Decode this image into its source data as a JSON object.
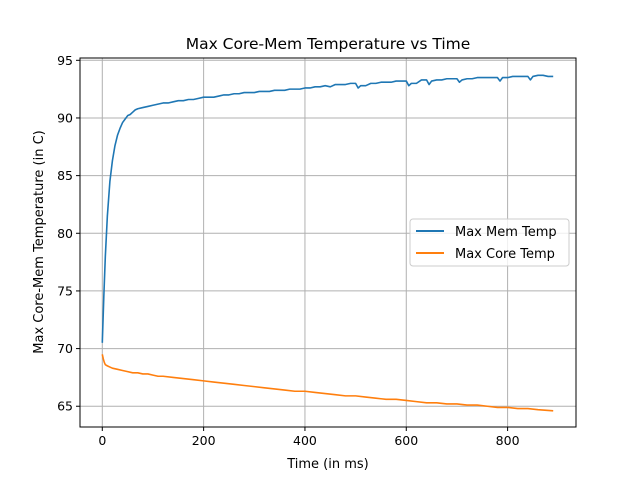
{
  "chart_data": {
    "type": "line",
    "title": "Max Core-Mem Temperature vs Time",
    "xlabel": "Time (in ms)",
    "ylabel": "Max Core-Mem Temperature (in C)",
    "xlim": [
      -44,
      935
    ],
    "ylim": [
      63.2,
      95.2
    ],
    "xticks": [
      0,
      200,
      400,
      600,
      800
    ],
    "yticks": [
      65,
      70,
      75,
      80,
      85,
      90,
      95
    ],
    "grid": true,
    "legend_position": "center-right",
    "series": [
      {
        "name": "Max Mem Temp",
        "color": "#1f77b4",
        "x": [
          0,
          3,
          6,
          10,
          15,
          20,
          25,
          30,
          35,
          40,
          45,
          50,
          55,
          60,
          65,
          70,
          80,
          90,
          100,
          110,
          120,
          130,
          140,
          150,
          160,
          170,
          180,
          190,
          200,
          210,
          220,
          230,
          240,
          250,
          260,
          270,
          280,
          290,
          300,
          310,
          320,
          330,
          340,
          350,
          360,
          370,
          380,
          390,
          400,
          410,
          420,
          430,
          440,
          450,
          460,
          470,
          480,
          490,
          500,
          505,
          510,
          520,
          530,
          540,
          550,
          560,
          570,
          580,
          590,
          600,
          605,
          610,
          620,
          630,
          640,
          645,
          650,
          660,
          670,
          680,
          690,
          700,
          705,
          710,
          720,
          730,
          740,
          750,
          760,
          770,
          780,
          785,
          790,
          800,
          810,
          820,
          830,
          840,
          845,
          850,
          860,
          870,
          880,
          890
        ],
        "y": [
          70.5,
          74.5,
          78.0,
          81.5,
          84.5,
          86.3,
          87.6,
          88.5,
          89.1,
          89.6,
          89.9,
          90.2,
          90.3,
          90.5,
          90.7,
          90.8,
          90.9,
          91.0,
          91.1,
          91.2,
          91.3,
          91.3,
          91.4,
          91.5,
          91.5,
          91.6,
          91.6,
          91.7,
          91.8,
          91.8,
          91.8,
          91.9,
          92.0,
          92.0,
          92.1,
          92.1,
          92.2,
          92.2,
          92.2,
          92.3,
          92.3,
          92.3,
          92.4,
          92.4,
          92.4,
          92.5,
          92.5,
          92.5,
          92.6,
          92.6,
          92.7,
          92.7,
          92.8,
          92.7,
          92.9,
          92.9,
          92.9,
          93.0,
          93.0,
          92.6,
          92.8,
          92.8,
          93.0,
          93.0,
          93.1,
          93.1,
          93.1,
          93.2,
          93.2,
          93.2,
          92.8,
          93.0,
          93.0,
          93.3,
          93.3,
          92.9,
          93.2,
          93.3,
          93.3,
          93.4,
          93.4,
          93.4,
          93.1,
          93.3,
          93.4,
          93.4,
          93.5,
          93.5,
          93.5,
          93.5,
          93.5,
          93.2,
          93.5,
          93.5,
          93.6,
          93.6,
          93.6,
          93.6,
          93.3,
          93.6,
          93.7,
          93.7,
          93.6,
          93.6
        ]
      },
      {
        "name": "Max Core Temp",
        "color": "#ff7f0e",
        "x": [
          0,
          2,
          4,
          6,
          10,
          15,
          20,
          30,
          40,
          50,
          60,
          70,
          80,
          90,
          100,
          110,
          120,
          140,
          160,
          180,
          200,
          220,
          240,
          260,
          280,
          300,
          320,
          340,
          360,
          380,
          400,
          420,
          440,
          460,
          480,
          500,
          520,
          540,
          560,
          580,
          600,
          620,
          640,
          660,
          680,
          700,
          720,
          740,
          760,
          780,
          800,
          820,
          840,
          860,
          890
        ],
        "y": [
          69.5,
          69.1,
          68.8,
          68.6,
          68.5,
          68.4,
          68.3,
          68.2,
          68.1,
          68.0,
          67.9,
          67.9,
          67.8,
          67.8,
          67.7,
          67.6,
          67.6,
          67.5,
          67.4,
          67.3,
          67.2,
          67.1,
          67.0,
          66.9,
          66.8,
          66.7,
          66.6,
          66.5,
          66.4,
          66.3,
          66.3,
          66.2,
          66.1,
          66.0,
          65.9,
          65.9,
          65.8,
          65.7,
          65.6,
          65.6,
          65.5,
          65.4,
          65.3,
          65.3,
          65.2,
          65.2,
          65.1,
          65.1,
          65.0,
          64.9,
          64.9,
          64.8,
          64.8,
          64.7,
          64.6
        ]
      }
    ]
  }
}
